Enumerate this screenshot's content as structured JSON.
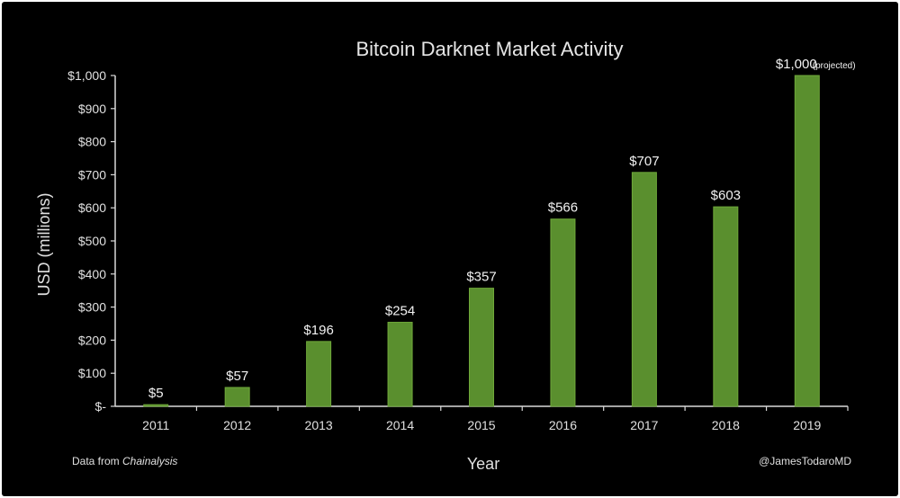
{
  "chart_data": {
    "type": "bar",
    "title": "Bitcoin Darknet Market Activity",
    "xlabel": "Year",
    "ylabel": "USD (millions)",
    "categories": [
      "2011",
      "2012",
      "2013",
      "2014",
      "2015",
      "2016",
      "2017",
      "2018",
      "2019"
    ],
    "values": [
      5,
      57,
      196,
      254,
      357,
      566,
      707,
      603,
      1000
    ],
    "data_labels": [
      "$5",
      "$57",
      "$196",
      "$254",
      "$357",
      "$566",
      "$707",
      "$603",
      "$1,000"
    ],
    "projected_note": "(projected)",
    "yticks": [
      0,
      100,
      200,
      300,
      400,
      500,
      600,
      700,
      800,
      900,
      1000
    ],
    "ytick_labels": [
      "$-",
      "$100",
      "$200",
      "$300",
      "$400",
      "$500",
      "$600",
      "$700",
      "$800",
      "$900",
      "$1,000"
    ],
    "ylim": [
      0,
      1000
    ],
    "grid": false,
    "bar_color": "#5a8f2e",
    "bar_highlight": "#6fa83a",
    "background": "#000000"
  },
  "footer": {
    "source_prefix": "Data from ",
    "source_name": "Chainalysis",
    "credit": "@JamesTodaroMD"
  }
}
